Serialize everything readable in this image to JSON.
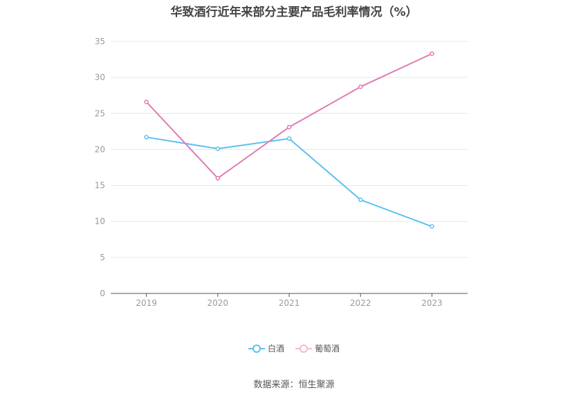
{
  "chart_data": {
    "type": "line",
    "title": "华致酒行近年来部分主要产品毛利率情况（%）",
    "categories": [
      "2019",
      "2020",
      "2021",
      "2022",
      "2023"
    ],
    "series": [
      {
        "name": "白酒",
        "color": "#5bc0f0",
        "values": [
          21.7,
          20.1,
          21.5,
          13.0,
          9.3
        ]
      },
      {
        "name": "葡萄酒",
        "color": "#e07bb5",
        "values": [
          26.6,
          16.0,
          23.1,
          28.7,
          33.3
        ]
      }
    ],
    "ylim": [
      0,
      35
    ],
    "yticks": [
      0,
      5,
      10,
      15,
      20,
      25,
      30,
      35
    ],
    "grid": true,
    "legend_position": "bottom"
  },
  "source": "数据来源：恒生聚源"
}
